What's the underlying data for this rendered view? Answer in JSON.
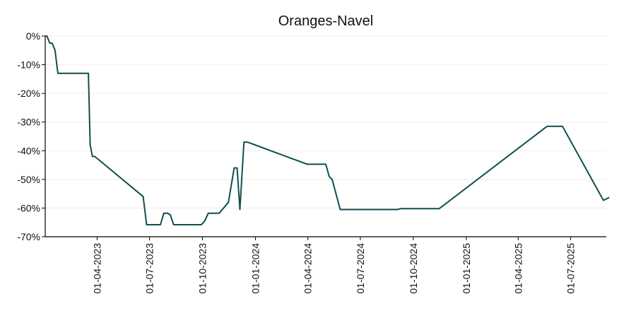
{
  "chart_data": {
    "type": "line",
    "title": "Oranges-Navel",
    "xlabel": "",
    "ylabel": "",
    "x_range": [
      "2023-01-01",
      "2025-09-01"
    ],
    "ylim": [
      -70,
      0
    ],
    "y_ticks": [
      0,
      -10,
      -20,
      -30,
      -40,
      -50,
      -60,
      -70
    ],
    "y_tick_labels": [
      "0%",
      "-10%",
      "-20%",
      "-30%",
      "-40%",
      "-50%",
      "-60%",
      "-70%"
    ],
    "x_ticks": [
      "2023-04-01",
      "2023-07-01",
      "2023-10-01",
      "2024-01-01",
      "2024-04-01",
      "2024-07-01",
      "2024-10-01",
      "2025-01-01",
      "2025-04-01",
      "2025-07-01"
    ],
    "x_tick_labels": [
      "01-04-2023",
      "01-07-2023",
      "01-10-2023",
      "01-01-2024",
      "01-04-2024",
      "01-07-2024",
      "01-10-2024",
      "01-01-2025",
      "01-04-2025",
      "01-07-2025"
    ],
    "grid": "horizontal",
    "line_color": "#0f4f4f",
    "series": [
      {
        "points": [
          [
            "2023-01-01",
            0
          ],
          [
            "2023-01-04",
            0
          ],
          [
            "2023-01-09",
            -2.5
          ],
          [
            "2023-01-13",
            -2.5
          ],
          [
            "2023-01-18",
            -5
          ],
          [
            "2023-01-23",
            -13
          ],
          [
            "2023-03-01",
            -13
          ],
          [
            "2023-03-17",
            -13
          ],
          [
            "2023-03-20",
            -38
          ],
          [
            "2023-03-24",
            -42
          ],
          [
            "2023-03-28",
            -42
          ],
          [
            "2023-06-20",
            -56
          ],
          [
            "2023-06-26",
            -65.8
          ],
          [
            "2023-07-20",
            -65.8
          ],
          [
            "2023-07-26",
            -61.8
          ],
          [
            "2023-08-01",
            -61.8
          ],
          [
            "2023-08-06",
            -62.3
          ],
          [
            "2023-08-12",
            -65.8
          ],
          [
            "2023-09-29",
            -65.8
          ],
          [
            "2023-10-05",
            -64.5
          ],
          [
            "2023-10-11",
            -61.8
          ],
          [
            "2023-10-30",
            -61.8
          ],
          [
            "2023-11-15",
            -58
          ],
          [
            "2023-11-25",
            -46
          ],
          [
            "2023-11-30",
            -46
          ],
          [
            "2023-12-05",
            -60.5
          ],
          [
            "2023-12-12",
            -37
          ],
          [
            "2023-12-18",
            -37
          ],
          [
            "2024-03-31",
            -44.7
          ],
          [
            "2024-05-02",
            -44.7
          ],
          [
            "2024-05-08",
            -49
          ],
          [
            "2024-05-13",
            -50
          ],
          [
            "2024-05-27",
            -60.5
          ],
          [
            "2024-09-03",
            -60.5
          ],
          [
            "2024-09-10",
            -60.2
          ],
          [
            "2024-11-15",
            -60.2
          ],
          [
            "2025-05-21",
            -31.5
          ],
          [
            "2025-06-17",
            -31.5
          ],
          [
            "2025-08-27",
            -57.3
          ],
          [
            "2025-09-06",
            -56.3
          ]
        ]
      }
    ]
  }
}
